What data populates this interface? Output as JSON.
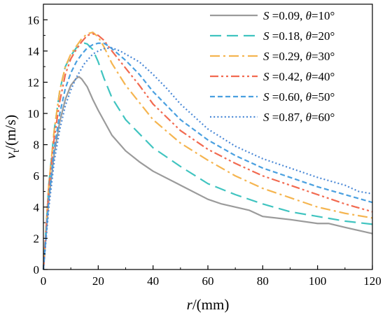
{
  "chart_data": {
    "type": "line",
    "xlabel": {
      "var": "r",
      "unit": "/(mm)"
    },
    "ylabel": {
      "var": "v",
      "sub": "t",
      "unit": "/(m/s)"
    },
    "xlim": [
      0,
      120
    ],
    "ylim": [
      0,
      17
    ],
    "xticks": [
      0,
      20,
      40,
      60,
      80,
      100,
      120
    ],
    "yticks": [
      0,
      2,
      4,
      6,
      8,
      10,
      12,
      14,
      16
    ],
    "grid": false,
    "legend_position": "top-right",
    "series": [
      {
        "name": "S =0.09, θ=10°",
        "name_parts": {
          "s_var": "S",
          "s_val": " =0.09, ",
          "t_var": "θ",
          "t_val": "=10°"
        },
        "color": "#9b9b9b",
        "dash": "solid",
        "x": [
          0,
          2,
          4,
          6,
          8,
          10,
          12,
          13,
          14,
          16,
          18,
          20,
          25,
          30,
          35,
          40,
          50,
          60,
          65,
          70,
          75,
          80,
          90,
          100,
          104,
          110,
          120
        ],
        "y": [
          0,
          4.5,
          7.5,
          9.5,
          10.9,
          11.8,
          12.25,
          12.35,
          12.2,
          11.7,
          10.9,
          10.2,
          8.6,
          7.6,
          6.9,
          6.3,
          5.4,
          4.5,
          4.2,
          4.0,
          3.8,
          3.4,
          3.2,
          2.95,
          2.95,
          2.7,
          2.3
        ]
      },
      {
        "name": "S =0.18, θ=20°",
        "name_parts": {
          "s_var": "S",
          "s_val": " =0.18, ",
          "t_var": "θ",
          "t_val": "=20°"
        },
        "color": "#40c4c0",
        "dash": "long",
        "x": [
          0,
          2,
          4,
          6,
          8,
          10,
          12,
          14,
          15,
          16,
          18,
          20,
          22,
          25,
          30,
          40,
          50,
          60,
          70,
          80,
          90,
          100,
          110,
          120
        ],
        "y": [
          0,
          5.5,
          9.0,
          11.5,
          13.0,
          13.7,
          14.2,
          14.45,
          14.5,
          14.45,
          14.1,
          13.3,
          12.3,
          11.0,
          9.6,
          7.8,
          6.6,
          5.5,
          4.8,
          4.2,
          3.7,
          3.4,
          3.1,
          2.9
        ]
      },
      {
        "name": "S =0.29, θ=30°",
        "name_parts": {
          "s_var": "S",
          "s_val": " =0.29, ",
          "t_var": "θ",
          "t_val": "=30°"
        },
        "color": "#f5b550",
        "dash": "dashdot",
        "x": [
          0,
          2,
          4,
          6,
          8,
          10,
          12,
          14,
          16,
          18,
          20,
          22,
          25,
          30,
          40,
          50,
          60,
          70,
          80,
          90,
          100,
          110,
          120
        ],
        "y": [
          0,
          5.5,
          9.0,
          11.5,
          13.0,
          13.8,
          14.3,
          14.8,
          15.1,
          15.2,
          14.9,
          14.3,
          13.2,
          11.8,
          9.6,
          8.1,
          7.0,
          6.0,
          5.2,
          4.6,
          4.0,
          3.6,
          3.3
        ]
      },
      {
        "name": "S =0.42, θ=40°",
        "name_parts": {
          "s_var": "S",
          "s_val": " =0.42, ",
          "t_var": "θ",
          "t_val": "=40°"
        },
        "color": "#f26a50",
        "dash": "dashdotdot",
        "x": [
          0,
          2,
          4,
          6,
          8,
          10,
          12,
          14,
          16,
          18,
          20,
          22,
          25,
          30,
          35,
          40,
          50,
          60,
          70,
          80,
          90,
          100,
          110,
          120
        ],
        "y": [
          0,
          5.2,
          8.5,
          10.8,
          12.5,
          13.5,
          14.1,
          14.6,
          15.0,
          15.1,
          15.0,
          14.7,
          14.0,
          12.9,
          11.8,
          10.6,
          8.9,
          7.7,
          6.8,
          6.0,
          5.4,
          4.8,
          4.2,
          3.7
        ]
      },
      {
        "name": "S =0.60, θ=50°",
        "name_parts": {
          "s_var": "S",
          "s_val": " =0.60, ",
          "t_var": "θ",
          "t_val": "=50°"
        },
        "color": "#4aa0e0",
        "dash": "short",
        "x": [
          0,
          2,
          4,
          6,
          8,
          10,
          12,
          14,
          16,
          18,
          20,
          22,
          24,
          26,
          30,
          35,
          40,
          50,
          60,
          70,
          80,
          90,
          100,
          110,
          120
        ],
        "y": [
          0,
          4.6,
          7.8,
          10.0,
          11.6,
          12.6,
          13.3,
          13.8,
          14.2,
          14.4,
          14.5,
          14.5,
          14.3,
          14.0,
          13.4,
          12.5,
          11.4,
          9.6,
          8.3,
          7.3,
          6.5,
          5.9,
          5.3,
          4.8,
          4.3
        ]
      },
      {
        "name": "S =0.87, θ=60°",
        "name_parts": {
          "s_var": "S",
          "s_val": " =0.87, ",
          "t_var": "θ",
          "t_val": "=60°"
        },
        "color": "#4a88d6",
        "dash": "dotted",
        "x": [
          0,
          2,
          4,
          6,
          8,
          10,
          12,
          15,
          18,
          20,
          22,
          25,
          28,
          30,
          35,
          40,
          45,
          50,
          60,
          70,
          80,
          90,
          100,
          110,
          115,
          120
        ],
        "y": [
          0,
          4.0,
          7.0,
          9.0,
          10.5,
          11.5,
          12.3,
          13.2,
          13.8,
          14.0,
          14.15,
          14.2,
          14.0,
          13.8,
          13.3,
          12.5,
          11.6,
          10.6,
          9.0,
          7.9,
          7.1,
          6.5,
          5.9,
          5.4,
          5.0,
          4.85
        ]
      }
    ]
  }
}
